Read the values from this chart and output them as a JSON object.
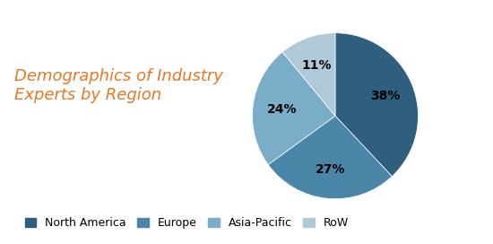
{
  "title": "Demographics of Industry\nExperts by Region",
  "title_color": "#E87722",
  "title_fontsize": 13,
  "labels": [
    "North America",
    "Europe",
    "Asia-Pacific",
    "RoW"
  ],
  "values": [
    38,
    27,
    24,
    11
  ],
  "colors": [
    "#2F5F7E",
    "#4A86A8",
    "#7AAEC8",
    "#B0C9D8"
  ],
  "pct_labels": [
    "38%",
    "27%",
    "24%",
    "11%"
  ],
  "background_color": "#FFFFFF",
  "legend_fontsize": 9,
  "startangle": 90
}
